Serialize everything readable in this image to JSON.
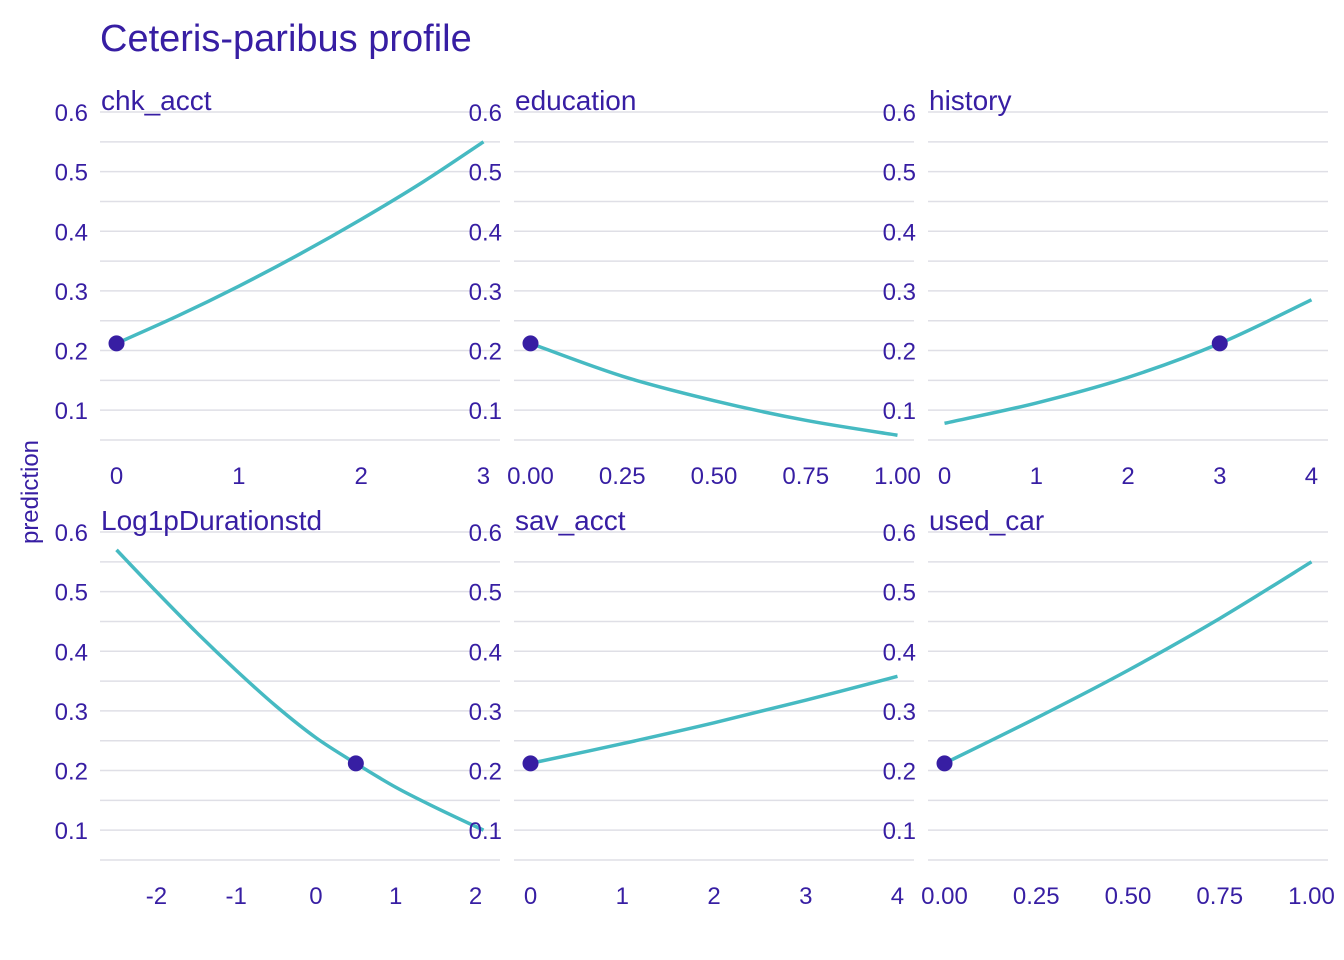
{
  "colors": {
    "text": "#371ea3",
    "line": "#46bac2",
    "point": "#371ea3",
    "grid": "#dfdfe6"
  },
  "chart_data": {
    "type": "line",
    "title": "Ceteris-paribus profile",
    "ylabel": "prediction",
    "ylim": [
      0.05,
      0.6
    ],
    "yticks": [
      0.1,
      0.2,
      0.3,
      0.4,
      0.5,
      0.6
    ],
    "ytick_labels": [
      "0.1",
      "0.2",
      "0.3",
      "0.4",
      "0.5",
      "0.6"
    ],
    "grid": true,
    "facets": [
      {
        "name": "chk_acct",
        "xlim": [
          0,
          3
        ],
        "xticks": [
          0,
          1,
          2,
          3
        ],
        "xtick_labels": [
          "0",
          "1",
          "2",
          "3"
        ],
        "x": [
          0,
          0.5,
          1,
          1.5,
          2,
          2.5,
          3
        ],
        "y": [
          0.212,
          0.258,
          0.308,
          0.362,
          0.42,
          0.482,
          0.55
        ],
        "observation": {
          "x": 0,
          "y": 0.212
        }
      },
      {
        "name": "education",
        "xlim": [
          0,
          1
        ],
        "xticks": [
          0,
          0.25,
          0.5,
          0.75,
          1
        ],
        "xtick_labels": [
          "0.00",
          "0.25",
          "0.50",
          "0.75",
          "1.00"
        ],
        "x": [
          0,
          0.25,
          0.5,
          0.75,
          1
        ],
        "y": [
          0.212,
          0.157,
          0.116,
          0.083,
          0.058
        ],
        "observation": {
          "x": 0,
          "y": 0.212
        }
      },
      {
        "name": "history",
        "xlim": [
          0,
          4
        ],
        "xticks": [
          0,
          1,
          2,
          3,
          4
        ],
        "xtick_labels": [
          "0",
          "1",
          "2",
          "3",
          "4"
        ],
        "x": [
          0,
          1,
          2,
          3,
          4
        ],
        "y": [
          0.078,
          0.112,
          0.155,
          0.212,
          0.285
        ],
        "observation": {
          "x": 3,
          "y": 0.212
        }
      },
      {
        "name": "Log1pDurationstd",
        "xlim": [
          -2.5,
          2.1
        ],
        "xticks": [
          -2,
          -1,
          0,
          1,
          2
        ],
        "xtick_labels": [
          "-2",
          "-1",
          "0",
          "1",
          "2"
        ],
        "x": [
          -2.5,
          -2,
          -1.5,
          -1,
          -0.5,
          0,
          0.5,
          1,
          1.5,
          2.1
        ],
        "y": [
          0.57,
          0.5,
          0.432,
          0.368,
          0.308,
          0.255,
          0.212,
          0.172,
          0.138,
          0.1
        ],
        "observation": {
          "x": 0.5,
          "y": 0.212
        }
      },
      {
        "name": "sav_acct",
        "xlim": [
          0,
          4
        ],
        "xticks": [
          0,
          1,
          2,
          3,
          4
        ],
        "xtick_labels": [
          "0",
          "1",
          "2",
          "3",
          "4"
        ],
        "x": [
          0,
          1,
          2,
          3,
          4
        ],
        "y": [
          0.212,
          0.245,
          0.28,
          0.318,
          0.358
        ],
        "observation": {
          "x": 0,
          "y": 0.212
        }
      },
      {
        "name": "used_car",
        "xlim": [
          0,
          1
        ],
        "xticks": [
          0,
          0.25,
          0.5,
          0.75,
          1
        ],
        "xtick_labels": [
          "0.00",
          "0.25",
          "0.50",
          "0.75",
          "1.00"
        ],
        "x": [
          0,
          0.25,
          0.5,
          0.75,
          1
        ],
        "y": [
          0.212,
          0.288,
          0.368,
          0.455,
          0.55
        ],
        "observation": {
          "x": 0,
          "y": 0.212
        }
      }
    ]
  }
}
